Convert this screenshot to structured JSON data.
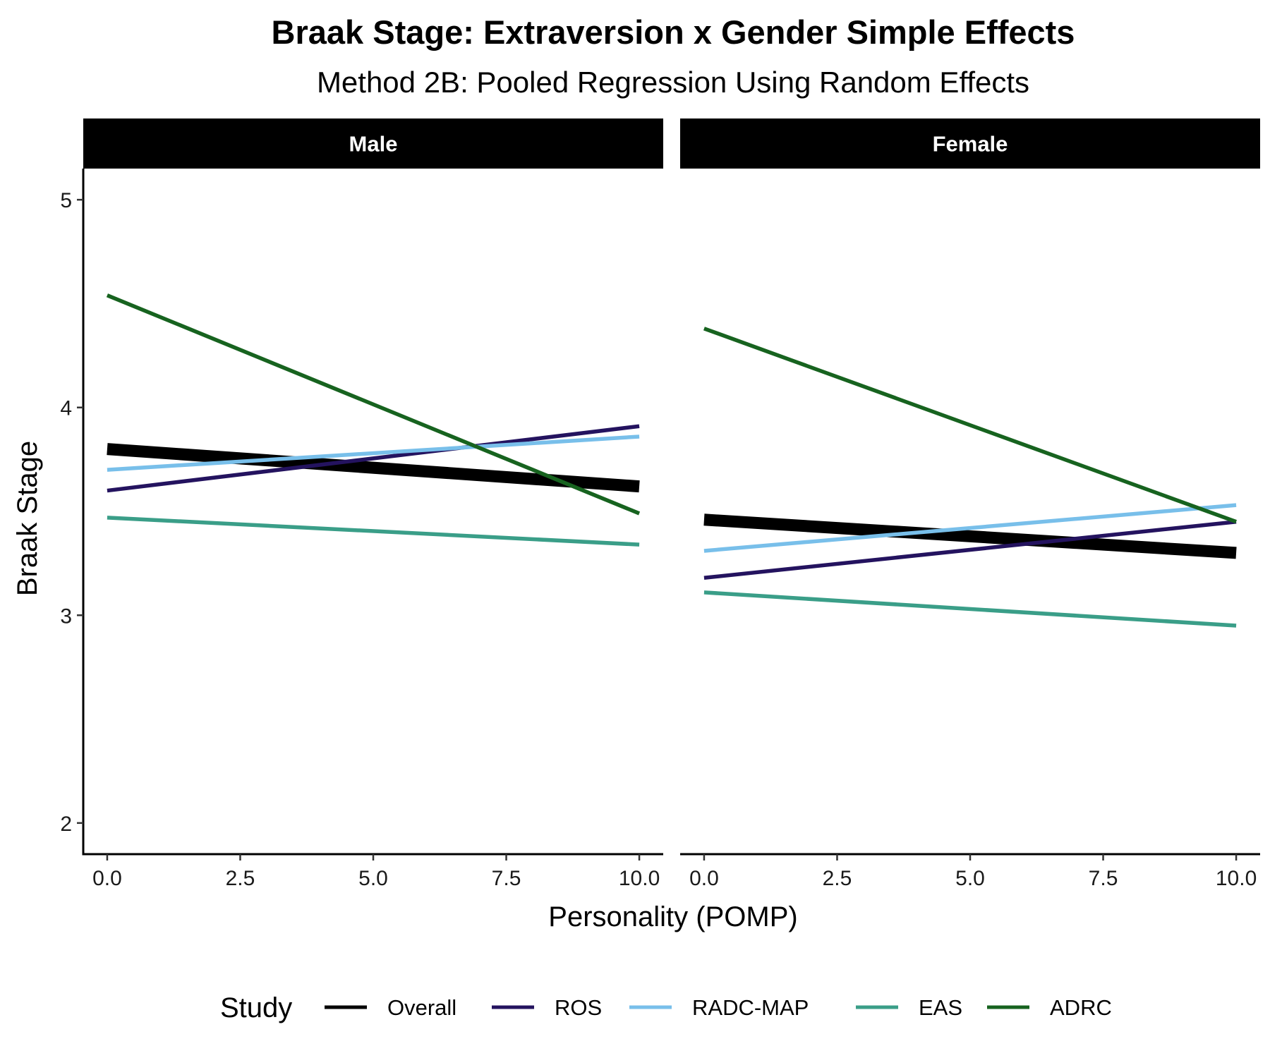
{
  "chart_data": {
    "type": "line",
    "title": "Braak Stage: Extraversion x Gender Simple Effects",
    "subtitle": "Method 2B: Pooled Regression Using Random Effects",
    "xlabel": "Personality (POMP)",
    "ylabel": "Braak Stage",
    "xlim": [
      -0.45,
      10.45
    ],
    "ylim": [
      1.85,
      5.15
    ],
    "xticks": [
      0,
      2.5,
      5,
      7.5,
      10
    ],
    "xtick_labels": [
      "0.0",
      "2.5",
      "5.0",
      "7.5",
      "10.0"
    ],
    "yticks": [
      2,
      3,
      4,
      5
    ],
    "ytick_labels": [
      "2",
      "3",
      "4",
      "5"
    ],
    "grid": false,
    "legend": {
      "title": "Study",
      "position": "bottom",
      "items": [
        "Overall",
        "ROS",
        "RADC-MAP",
        "EAS",
        "ADRC"
      ]
    },
    "colors": {
      "Overall": "#000000",
      "ROS": "#24135f",
      "RADC-MAP": "#78bfea",
      "EAS": "#3a9e88",
      "ADRC": "#17631f"
    },
    "panels": [
      {
        "label": "Male",
        "series": [
          {
            "name": "Overall",
            "x": [
              0,
              10
            ],
            "y": [
              3.8,
              3.62
            ]
          },
          {
            "name": "ROS",
            "x": [
              0,
              10
            ],
            "y": [
              3.6,
              3.91
            ]
          },
          {
            "name": "RADC-MAP",
            "x": [
              0,
              10
            ],
            "y": [
              3.7,
              3.86
            ]
          },
          {
            "name": "EAS",
            "x": [
              0,
              10
            ],
            "y": [
              3.47,
              3.34
            ]
          },
          {
            "name": "ADRC",
            "x": [
              0,
              10
            ],
            "y": [
              4.54,
              3.49
            ]
          }
        ]
      },
      {
        "label": "Female",
        "series": [
          {
            "name": "Overall",
            "x": [
              0,
              10
            ],
            "y": [
              3.46,
              3.3
            ]
          },
          {
            "name": "ROS",
            "x": [
              0,
              10
            ],
            "y": [
              3.18,
              3.45
            ]
          },
          {
            "name": "RADC-MAP",
            "x": [
              0,
              10
            ],
            "y": [
              3.31,
              3.53
            ]
          },
          {
            "name": "EAS",
            "x": [
              0,
              10
            ],
            "y": [
              3.11,
              2.95
            ]
          },
          {
            "name": "ADRC",
            "x": [
              0,
              10
            ],
            "y": [
              4.38,
              3.45
            ]
          }
        ]
      }
    ]
  }
}
